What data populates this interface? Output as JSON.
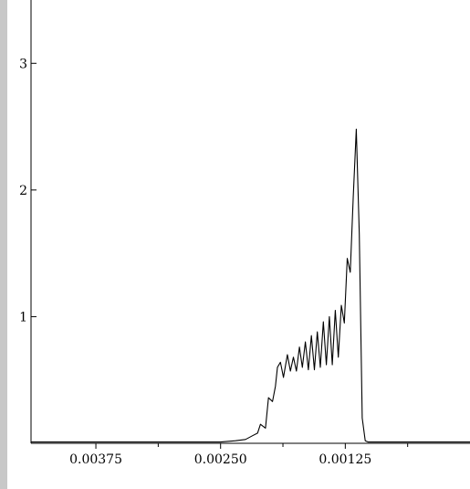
{
  "chart_data": {
    "type": "line",
    "title": "",
    "xlabel": "",
    "ylabel": "",
    "x_reversed": true,
    "xlim": [
      0.0044,
      0.0
    ],
    "ylim": [
      0,
      3.5
    ],
    "grid": false,
    "x_ticks": [
      0.00375,
      0.0025,
      0.00125
    ],
    "x_tick_labels": [
      "0.00375",
      "0.00250",
      "0.00125"
    ],
    "x_minor_ticks": [
      0.003125,
      0.001875,
      0.000625
    ],
    "y_ticks": [
      1,
      2,
      3
    ],
    "y_tick_labels": [
      "1",
      "2",
      "3"
    ],
    "series": [
      {
        "x": [
          0.0044,
          0.0035,
          0.003,
          0.0027,
          0.0025,
          0.00235,
          0.00225,
          0.00218,
          0.00213,
          0.0021,
          0.00205,
          0.00202,
          0.00198,
          0.00195,
          0.00193,
          0.0019,
          0.00187,
          0.00183,
          0.0018,
          0.00177,
          0.00174,
          0.00171,
          0.00168,
          0.00165,
          0.00162,
          0.00159,
          0.00156,
          0.00153,
          0.0015,
          0.00147,
          0.00144,
          0.00141,
          0.00138,
          0.00135,
          0.00132,
          0.00129,
          0.00126,
          0.00123,
          0.0012,
          0.00117,
          0.00114,
          0.00111,
          0.00108,
          0.00105,
          0.00102,
          0.00099,
          0.00096,
          0.00093,
          0.0009,
          0.00087,
          0.00084,
          0.00081,
          0.00078,
          0.00075,
          0.00072,
          0.00069,
          0.0,
          -0.0002
        ],
        "y": [
          0.01,
          0.01,
          0.01,
          0.01,
          0.01,
          0.02,
          0.03,
          0.06,
          0.08,
          0.15,
          0.12,
          0.36,
          0.33,
          0.45,
          0.6,
          0.64,
          0.52,
          0.7,
          0.57,
          0.68,
          0.57,
          0.76,
          0.6,
          0.8,
          0.58,
          0.85,
          0.58,
          0.88,
          0.6,
          0.96,
          0.62,
          1.0,
          0.62,
          1.05,
          0.68,
          1.09,
          0.95,
          1.46,
          1.35,
          1.95,
          2.48,
          1.65,
          0.2,
          0.02,
          0.01,
          0.01,
          0.01,
          0.01,
          0.01,
          0.01,
          0.01,
          0.01,
          0.01,
          0.01,
          0.01,
          0.01,
          0.01,
          0.01
        ]
      }
    ]
  }
}
